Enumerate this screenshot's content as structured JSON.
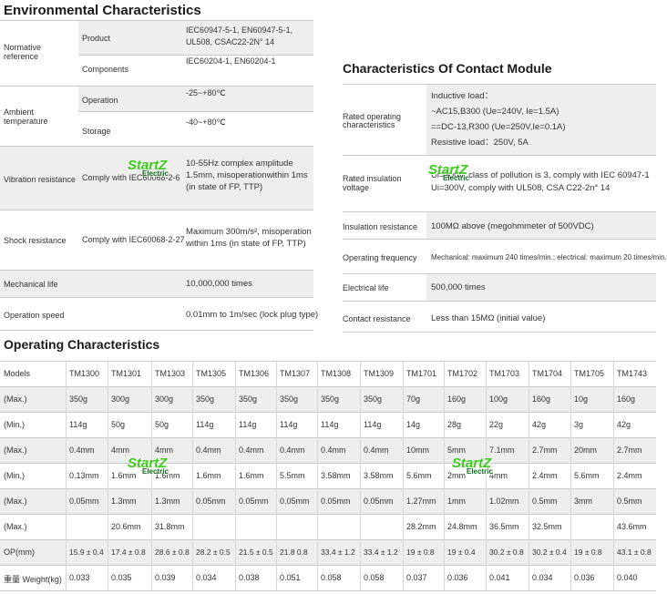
{
  "env": {
    "title": "Environmental Characteristics",
    "rows": [
      {
        "label": "Normative reference",
        "sub": "Product",
        "value": "IEC60947-5-1, EN60947-5-1, UL508, CSAC22-2N° 14"
      },
      {
        "label": "",
        "sub": "Components",
        "value": "IEC60204-1, EN60204-1"
      },
      {
        "label": "Ambient temperature",
        "sub": "Operation",
        "value": "-25~+80℃"
      },
      {
        "label": "",
        "sub": "Storage",
        "value": "-40~+80℃"
      },
      {
        "label": "Vibration resistance",
        "sub": "Comply with IEC60068-2-6",
        "value": "10-55Hz complex amplitude 1.5mm, misoperationwithin 1ms (in state of FP, TTP)"
      },
      {
        "label": "Shock resistance",
        "sub": "Comply with IEC60068-2-27",
        "value": "Maximum 300m/s², misoperation within 1ms (in state of FP, TTP)"
      },
      {
        "label": "Mechanical life",
        "sub": "",
        "value": "10,000,000 times"
      },
      {
        "label": "Operation speed",
        "sub": "",
        "value": "0.01mm to 1m/sec (lock plug type)"
      }
    ],
    "lines": {
      "norm_1": "IEC60947-5-1, EN60947-5-1,",
      "norm_2": "UL508, CSAC22-2N° 14",
      "vib_1": "10-55Hz complex amplitude",
      "vib_2": "1.5mm, misoperationwithin 1ms",
      "vib_3": "(in state of FP, TTP)",
      "shock_1": "Maximum 300m/s², misoperation",
      "shock_2": "within 1ms (in state of FP, TTP)",
      "label_norm_1": "Normative",
      "label_norm_2": "reference",
      "label_amb_1": "Ambient",
      "label_amb_2": "temperature"
    }
  },
  "contact": {
    "title": "Characteristics Of Contact Module",
    "rated_op_label_1": "Rated operating",
    "rated_op_label_2": "characteristics",
    "rated_op_lines": [
      "Inductive load：",
      "~AC15,B300 (Ue=240V, Ie=1.5A)",
      "==DC-13,R300 (Ue=250V,Ie=0.1A)",
      "Resistive load：250V, 5A"
    ],
    "ins_volt_label_1": "Rated insulation",
    "ins_volt_label_2": "voltage",
    "ins_volt_lines": [
      "Ui=500V, class of pollution is 3, comply with IEC 60947-1",
      "Ui=300V, comply with UL508, CSA C22-2n° 14"
    ],
    "ins_res_label": "Insulation resistance",
    "ins_res_value": "100MΩ above (megohmmeter of 500VDC)",
    "op_freq_label": "Operating frequency",
    "op_freq_value": "Mechanical: maximum 240 times/min.; electrical: maximum 20 times/min.",
    "elec_life_label": "Electrical life",
    "elec_life_value": "500,000 times",
    "contact_res_label": "Contact resistance",
    "contact_res_value": "Less than 15MΩ (initial value)"
  },
  "operating": {
    "title": "Operating Characteristics",
    "row_labels": [
      "Models",
      "(Max.)",
      "(Min.)",
      "(Max.)",
      "(Min.)",
      "(Max.)",
      "(Max.)",
      "OP(mm)",
      "重量 Weight(kg)"
    ],
    "rows": [
      [
        "TM1300",
        "TM1301",
        "TM1303",
        "TM1305",
        "TM1306",
        "TM1307",
        "TM1308",
        "TM1309",
        "TM1701",
        "TM1702",
        "TM1703",
        "TM1704",
        "TM1705",
        "TM1743"
      ],
      [
        "350g",
        "300g",
        "300g",
        "350g",
        "350g",
        "350g",
        "350g",
        "350g",
        "70g",
        "160g",
        "100g",
        "160g",
        "10g",
        "160g"
      ],
      [
        "114g",
        "50g",
        "50g",
        "114g",
        "114g",
        "114g",
        "114g",
        "114g",
        "14g",
        "28g",
        "22g",
        "42g",
        "3g",
        "42g"
      ],
      [
        "0.4mm",
        "4mm",
        "4mm",
        "0.4mm",
        "0.4mm",
        "0.4mm",
        "0.4mm",
        "0.4mm",
        "10mm",
        "5mm",
        "7.1mm",
        "2.7mm",
        "20mm",
        "2.7mm"
      ],
      [
        "0.13mm",
        "1.6mm",
        "1.6mm",
        "1.6mm",
        "1.6mm",
        "5.5mm",
        "3.58mm",
        "3.58mm",
        "5.6mm",
        "2mm",
        "4mm",
        "2.4mm",
        "5.6mm",
        "2.4mm"
      ],
      [
        "0.05mm",
        "1.3mm",
        "1.3mm",
        "0.05mm",
        "0.05mm",
        "0.05mm",
        "0.05mm",
        "0.05mm",
        "1.27mm",
        "1mm",
        "1.02mm",
        "0.5mm",
        "3mm",
        "0.5mm"
      ],
      [
        "",
        "20.6mm",
        "31.8mm",
        "",
        "",
        "",
        "",
        "",
        "28.2mm",
        "24.8mm",
        "36.5mm",
        "32.5mm",
        "",
        "43.6mm"
      ],
      [
        "15.9 ± 0.4",
        "17.4 ± 0.8",
        "28.6 ± 0.8",
        "28.2 ± 0.5",
        "21.5 ± 0.5",
        "21.8 0.8",
        "33.4 ± 1.2",
        "33.4 ± 1.2",
        "19 ± 0.8",
        "19 ± 0.4",
        "30.2 ± 0.8",
        "30.2 ± 0.4",
        "19 ± 0.8",
        "43.1 ± 0.8"
      ],
      [
        "0.033",
        "0.035",
        "0.039",
        "0.034",
        "0.038",
        "0.051",
        "0.058",
        "0.058",
        "0.037",
        "0.036",
        "0.041",
        "0.034",
        "0.036",
        "0.040"
      ]
    ]
  },
  "watermark": {
    "brand": "StartZ",
    "sub": "Electric"
  }
}
